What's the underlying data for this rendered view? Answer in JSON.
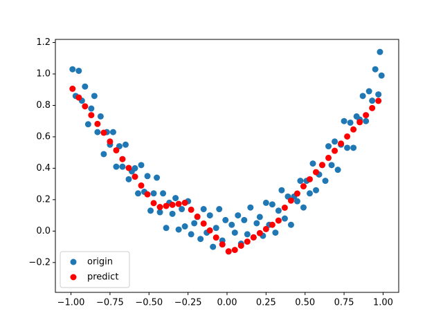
{
  "chart_data": {
    "type": "scatter",
    "xlim": [
      -1.1,
      1.1
    ],
    "ylim": [
      -0.39,
      1.22
    ],
    "xticks": [
      {
        "value": -1,
        "label": "−1.00"
      },
      {
        "value": -0.75,
        "label": "−0.75"
      },
      {
        "value": -0.5,
        "label": "−0.50"
      },
      {
        "value": -0.25,
        "label": "−0.25"
      },
      {
        "value": 0,
        "label": "0.00"
      },
      0.25,
      {
        "value": 0.5,
        "label": "0.50"
      },
      0.75,
      {
        "value": 1,
        "label": "1.00"
      }
    ],
    "yticks": [
      {
        "value": -0.2,
        "label": "−0.2"
      },
      {
        "value": 0,
        "label": "0.0"
      },
      0.2,
      0.4,
      0.6,
      0.8,
      {
        "value": 1,
        "label": "1.0"
      },
      1.2
    ],
    "legend": "lower left",
    "series": [
      {
        "name": "origin",
        "color": "#1f77b4",
        "x": [
          -0.99,
          -0.97,
          -0.95,
          -0.93,
          -0.91,
          -0.89,
          -0.87,
          -0.85,
          -0.83,
          -0.81,
          -0.79,
          -0.77,
          -0.75,
          -0.73,
          -0.71,
          -0.69,
          -0.67,
          -0.65,
          -0.63,
          -0.61,
          -0.59,
          -0.57,
          -0.55,
          -0.53,
          -0.51,
          -0.49,
          -0.47,
          -0.45,
          -0.43,
          -0.41,
          -0.39,
          -0.37,
          -0.35,
          -0.33,
          -0.31,
          -0.29,
          -0.27,
          -0.25,
          -0.23,
          -0.21,
          -0.19,
          -0.17,
          -0.15,
          -0.13,
          -0.11,
          -0.09,
          -0.07,
          -0.05,
          -0.03,
          -0.01,
          0.01,
          0.03,
          0.05,
          0.07,
          0.09,
          0.11,
          0.13,
          0.15,
          0.17,
          0.19,
          0.21,
          0.23,
          0.25,
          0.27,
          0.29,
          0.31,
          0.33,
          0.35,
          0.37,
          0.39,
          0.41,
          0.43,
          0.45,
          0.47,
          0.49,
          0.51,
          0.53,
          0.55,
          0.57,
          0.59,
          0.61,
          0.63,
          0.65,
          0.67,
          0.69,
          0.71,
          0.73,
          0.75,
          0.77,
          0.79,
          0.81,
          0.83,
          0.85,
          0.87,
          0.89,
          0.91,
          0.93,
          0.95,
          0.97,
          0.99,
          0.98
        ],
        "values": [
          1.03,
          0.86,
          1.02,
          0.83,
          0.92,
          0.68,
          0.78,
          0.86,
          0.63,
          0.73,
          0.49,
          0.63,
          0.55,
          0.63,
          0.41,
          0.54,
          0.41,
          0.55,
          0.33,
          0.38,
          0.4,
          0.24,
          0.42,
          0.25,
          0.35,
          0.13,
          0.24,
          0.34,
          0.12,
          0.24,
          0.02,
          0.18,
          0.11,
          0.21,
          0.01,
          0.14,
          0.03,
          0.19,
          -0.02,
          0.05,
          0.09,
          -0.05,
          0.14,
          -0.01,
          0.1,
          -0.1,
          0.02,
          0.14,
          -0.06,
          0.07,
          -0.13,
          0.04,
          -0.01,
          0.1,
          -0.08,
          0.07,
          -0.02,
          0.15,
          -0.04,
          0.05,
          0.09,
          -0.03,
          0.18,
          0.04,
          0.17,
          -0.01,
          0.13,
          0.26,
          0.08,
          0.22,
          0.04,
          0.22,
          0.19,
          0.32,
          0.15,
          0.32,
          0.24,
          0.43,
          0.26,
          0.36,
          0.42,
          0.32,
          0.54,
          0.42,
          0.57,
          0.39,
          0.55,
          0.7,
          0.53,
          0.69,
          0.53,
          0.73,
          0.71,
          0.86,
          0.7,
          0.89,
          0.83,
          1.03,
          0.87,
          0.99,
          1.14
        ]
      },
      {
        "name": "predict",
        "color": "#ff0000",
        "x": [
          -0.99,
          -0.95,
          -0.91,
          -0.87,
          -0.83,
          -0.79,
          -0.75,
          -0.71,
          -0.67,
          -0.63,
          -0.59,
          -0.55,
          -0.51,
          -0.47,
          -0.43,
          -0.39,
          -0.35,
          -0.31,
          -0.27,
          -0.23,
          -0.19,
          -0.15,
          -0.11,
          -0.07,
          -0.03,
          0.01,
          0.05,
          0.09,
          0.13,
          0.17,
          0.21,
          0.25,
          0.29,
          0.33,
          0.37,
          0.41,
          0.45,
          0.49,
          0.53,
          0.57,
          0.61,
          0.65,
          0.69,
          0.73,
          0.77,
          0.81,
          0.85,
          0.89,
          0.93,
          0.97
        ],
        "values": [
          0.906,
          0.85,
          0.794,
          0.738,
          0.682,
          0.626,
          0.57,
          0.514,
          0.458,
          0.402,
          0.346,
          0.29,
          0.234,
          0.178,
          0.153,
          0.16,
          0.167,
          0.173,
          0.18,
          0.136,
          0.092,
          0.048,
          0.004,
          -0.041,
          -0.085,
          -0.129,
          -0.12,
          -0.093,
          -0.067,
          -0.04,
          -0.013,
          0.013,
          0.04,
          0.067,
          0.149,
          0.194,
          0.239,
          0.285,
          0.33,
          0.375,
          0.421,
          0.466,
          0.511,
          0.557,
          0.602,
          0.647,
          0.693,
          0.738,
          0.783,
          0.829
        ]
      }
    ]
  }
}
